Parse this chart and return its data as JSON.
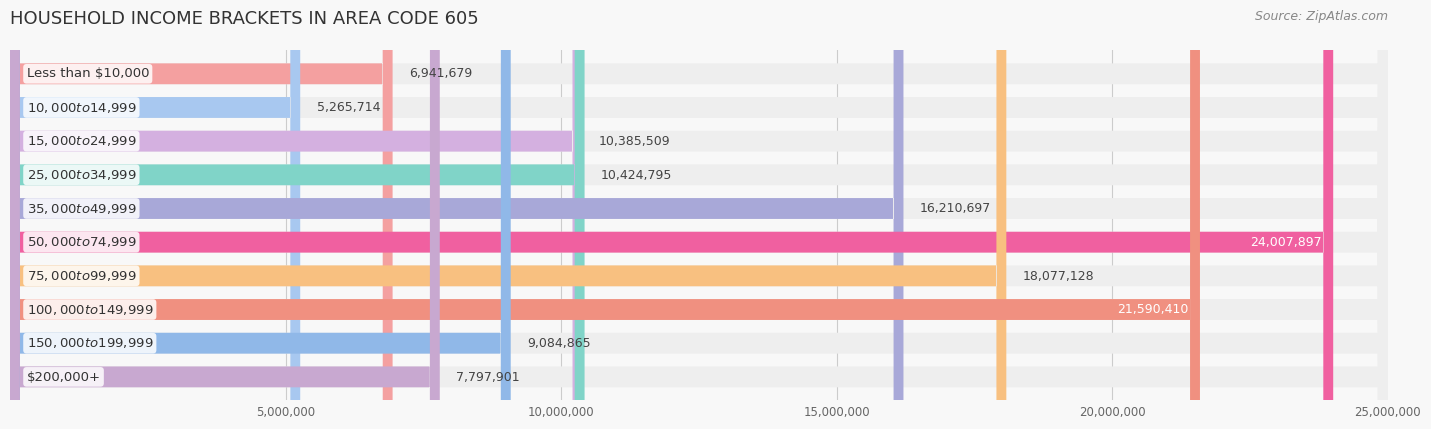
{
  "title": "HOUSEHOLD INCOME BRACKETS IN AREA CODE 605",
  "source": "Source: ZipAtlas.com",
  "categories": [
    "Less than $10,000",
    "$10,000 to $14,999",
    "$15,000 to $24,999",
    "$25,000 to $34,999",
    "$35,000 to $49,999",
    "$50,000 to $74,999",
    "$75,000 to $99,999",
    "$100,000 to $149,999",
    "$150,000 to $199,999",
    "$200,000+"
  ],
  "values": [
    6941679,
    5265714,
    10385509,
    10424795,
    16210697,
    24007897,
    18077128,
    21590410,
    9084865,
    7797901
  ],
  "bar_colors": [
    "#f4a0a0",
    "#a8c8f0",
    "#d4b0e0",
    "#80d4c8",
    "#a8a8d8",
    "#f060a0",
    "#f8c080",
    "#f09080",
    "#90b8e8",
    "#c8a8d0"
  ],
  "value_labels": [
    "6,941,679",
    "5,265,714",
    "10,385,509",
    "10,424,795",
    "16,210,697",
    "24,007,897",
    "18,077,128",
    "21,590,410",
    "9,084,865",
    "7,797,901"
  ],
  "xlim": [
    0,
    25000000
  ],
  "xticks": [
    0,
    5000000,
    10000000,
    15000000,
    20000000,
    25000000
  ],
  "xtick_labels": [
    "",
    "5,000,000",
    "10,000,000",
    "15,000,000",
    "20,000,000",
    "25,000,000"
  ],
  "background_color": "#f8f8f8",
  "bar_background_color": "#eeeeee",
  "title_fontsize": 13,
  "label_fontsize": 9.5,
  "value_fontsize": 9,
  "source_fontsize": 9
}
